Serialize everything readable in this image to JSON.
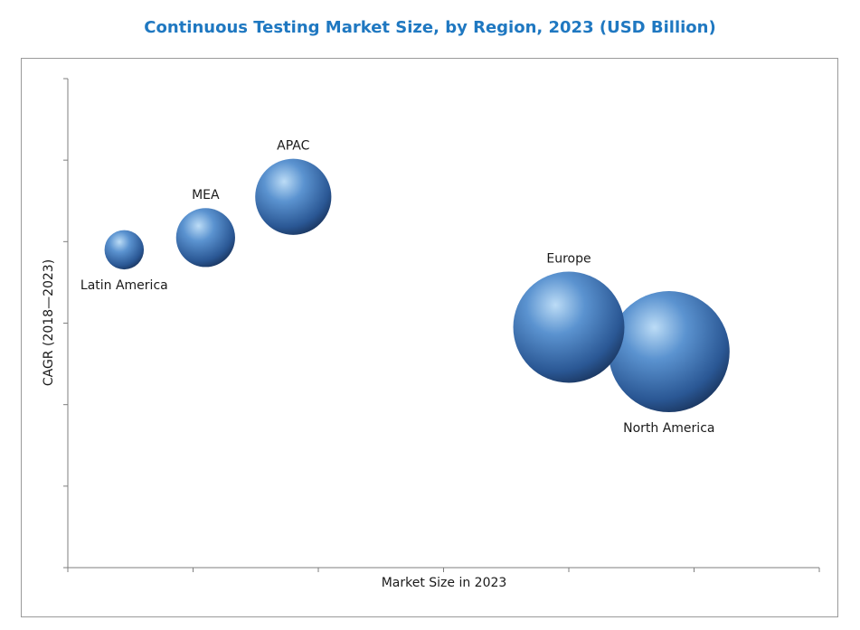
{
  "title": "Continuous Testing Market Size, by Region, 2023 (USD Billion)",
  "colors": {
    "title": "#1f78c1",
    "bubble_light": "#b9d9f5",
    "bubble_mid": "#4f86c6",
    "bubble_dark": "#1d3f6e",
    "axis": "#7f7f7f"
  },
  "chart_data": {
    "type": "bubble",
    "title": "Continuous Testing Market Size, by Region, 2023 (USD Billion)",
    "xlabel": "Market Size in 2023",
    "ylabel": "CAGR (2018—2023)",
    "xlim": [
      0,
      6
    ],
    "ylim": [
      0,
      6
    ],
    "x_ticks": 6,
    "y_ticks": 6,
    "grid": false,
    "legend": "none",
    "points": [
      {
        "label": "Latin America",
        "x": 0.45,
        "y": 3.9,
        "size": 0.2,
        "label_pos": "below"
      },
      {
        "label": "MEA",
        "x": 1.1,
        "y": 4.05,
        "size": 0.45,
        "label_pos": "above"
      },
      {
        "label": "APAC",
        "x": 1.8,
        "y": 4.55,
        "size": 0.75,
        "label_pos": "above"
      },
      {
        "label": "Europe",
        "x": 4.0,
        "y": 2.95,
        "size": 1.6,
        "label_pos": "above"
      },
      {
        "label": "North America",
        "x": 4.8,
        "y": 2.65,
        "size": 1.9,
        "label_pos": "below"
      }
    ]
  }
}
